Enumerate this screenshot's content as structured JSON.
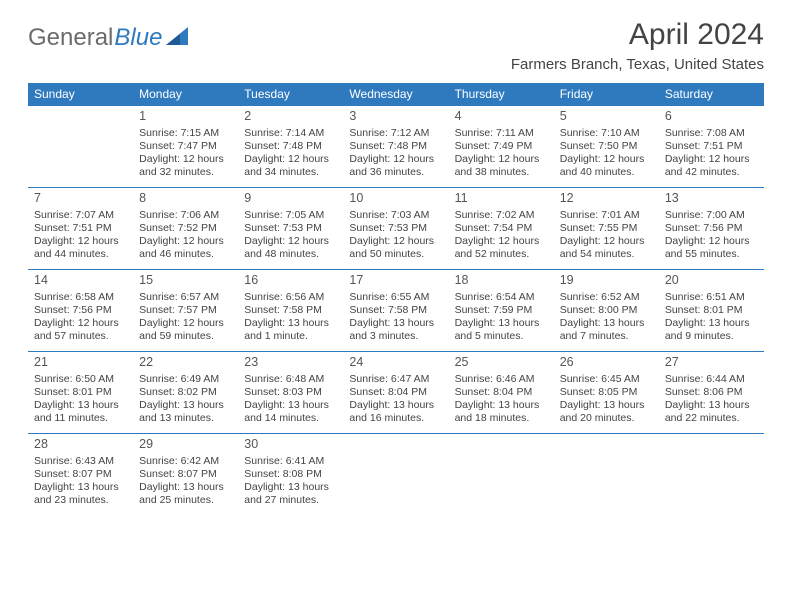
{
  "header": {
    "logo_gray": "General",
    "logo_blue": "Blue",
    "month_title": "April 2024",
    "location": "Farmers Branch, Texas, United States"
  },
  "calendar": {
    "header_bg": "#2f7abf",
    "header_fg": "#ffffff",
    "border_color": "#2f7abf",
    "day_headers": [
      "Sunday",
      "Monday",
      "Tuesday",
      "Wednesday",
      "Thursday",
      "Friday",
      "Saturday"
    ],
    "weeks": [
      [
        null,
        {
          "n": "1",
          "sr": "Sunrise: 7:15 AM",
          "ss": "Sunset: 7:47 PM",
          "d1": "Daylight: 12 hours",
          "d2": "and 32 minutes."
        },
        {
          "n": "2",
          "sr": "Sunrise: 7:14 AM",
          "ss": "Sunset: 7:48 PM",
          "d1": "Daylight: 12 hours",
          "d2": "and 34 minutes."
        },
        {
          "n": "3",
          "sr": "Sunrise: 7:12 AM",
          "ss": "Sunset: 7:48 PM",
          "d1": "Daylight: 12 hours",
          "d2": "and 36 minutes."
        },
        {
          "n": "4",
          "sr": "Sunrise: 7:11 AM",
          "ss": "Sunset: 7:49 PM",
          "d1": "Daylight: 12 hours",
          "d2": "and 38 minutes."
        },
        {
          "n": "5",
          "sr": "Sunrise: 7:10 AM",
          "ss": "Sunset: 7:50 PM",
          "d1": "Daylight: 12 hours",
          "d2": "and 40 minutes."
        },
        {
          "n": "6",
          "sr": "Sunrise: 7:08 AM",
          "ss": "Sunset: 7:51 PM",
          "d1": "Daylight: 12 hours",
          "d2": "and 42 minutes."
        }
      ],
      [
        {
          "n": "7",
          "sr": "Sunrise: 7:07 AM",
          "ss": "Sunset: 7:51 PM",
          "d1": "Daylight: 12 hours",
          "d2": "and 44 minutes."
        },
        {
          "n": "8",
          "sr": "Sunrise: 7:06 AM",
          "ss": "Sunset: 7:52 PM",
          "d1": "Daylight: 12 hours",
          "d2": "and 46 minutes."
        },
        {
          "n": "9",
          "sr": "Sunrise: 7:05 AM",
          "ss": "Sunset: 7:53 PM",
          "d1": "Daylight: 12 hours",
          "d2": "and 48 minutes."
        },
        {
          "n": "10",
          "sr": "Sunrise: 7:03 AM",
          "ss": "Sunset: 7:53 PM",
          "d1": "Daylight: 12 hours",
          "d2": "and 50 minutes."
        },
        {
          "n": "11",
          "sr": "Sunrise: 7:02 AM",
          "ss": "Sunset: 7:54 PM",
          "d1": "Daylight: 12 hours",
          "d2": "and 52 minutes."
        },
        {
          "n": "12",
          "sr": "Sunrise: 7:01 AM",
          "ss": "Sunset: 7:55 PM",
          "d1": "Daylight: 12 hours",
          "d2": "and 54 minutes."
        },
        {
          "n": "13",
          "sr": "Sunrise: 7:00 AM",
          "ss": "Sunset: 7:56 PM",
          "d1": "Daylight: 12 hours",
          "d2": "and 55 minutes."
        }
      ],
      [
        {
          "n": "14",
          "sr": "Sunrise: 6:58 AM",
          "ss": "Sunset: 7:56 PM",
          "d1": "Daylight: 12 hours",
          "d2": "and 57 minutes."
        },
        {
          "n": "15",
          "sr": "Sunrise: 6:57 AM",
          "ss": "Sunset: 7:57 PM",
          "d1": "Daylight: 12 hours",
          "d2": "and 59 minutes."
        },
        {
          "n": "16",
          "sr": "Sunrise: 6:56 AM",
          "ss": "Sunset: 7:58 PM",
          "d1": "Daylight: 13 hours",
          "d2": "and 1 minute."
        },
        {
          "n": "17",
          "sr": "Sunrise: 6:55 AM",
          "ss": "Sunset: 7:58 PM",
          "d1": "Daylight: 13 hours",
          "d2": "and 3 minutes."
        },
        {
          "n": "18",
          "sr": "Sunrise: 6:54 AM",
          "ss": "Sunset: 7:59 PM",
          "d1": "Daylight: 13 hours",
          "d2": "and 5 minutes."
        },
        {
          "n": "19",
          "sr": "Sunrise: 6:52 AM",
          "ss": "Sunset: 8:00 PM",
          "d1": "Daylight: 13 hours",
          "d2": "and 7 minutes."
        },
        {
          "n": "20",
          "sr": "Sunrise: 6:51 AM",
          "ss": "Sunset: 8:01 PM",
          "d1": "Daylight: 13 hours",
          "d2": "and 9 minutes."
        }
      ],
      [
        {
          "n": "21",
          "sr": "Sunrise: 6:50 AM",
          "ss": "Sunset: 8:01 PM",
          "d1": "Daylight: 13 hours",
          "d2": "and 11 minutes."
        },
        {
          "n": "22",
          "sr": "Sunrise: 6:49 AM",
          "ss": "Sunset: 8:02 PM",
          "d1": "Daylight: 13 hours",
          "d2": "and 13 minutes."
        },
        {
          "n": "23",
          "sr": "Sunrise: 6:48 AM",
          "ss": "Sunset: 8:03 PM",
          "d1": "Daylight: 13 hours",
          "d2": "and 14 minutes."
        },
        {
          "n": "24",
          "sr": "Sunrise: 6:47 AM",
          "ss": "Sunset: 8:04 PM",
          "d1": "Daylight: 13 hours",
          "d2": "and 16 minutes."
        },
        {
          "n": "25",
          "sr": "Sunrise: 6:46 AM",
          "ss": "Sunset: 8:04 PM",
          "d1": "Daylight: 13 hours",
          "d2": "and 18 minutes."
        },
        {
          "n": "26",
          "sr": "Sunrise: 6:45 AM",
          "ss": "Sunset: 8:05 PM",
          "d1": "Daylight: 13 hours",
          "d2": "and 20 minutes."
        },
        {
          "n": "27",
          "sr": "Sunrise: 6:44 AM",
          "ss": "Sunset: 8:06 PM",
          "d1": "Daylight: 13 hours",
          "d2": "and 22 minutes."
        }
      ],
      [
        {
          "n": "28",
          "sr": "Sunrise: 6:43 AM",
          "ss": "Sunset: 8:07 PM",
          "d1": "Daylight: 13 hours",
          "d2": "and 23 minutes."
        },
        {
          "n": "29",
          "sr": "Sunrise: 6:42 AM",
          "ss": "Sunset: 8:07 PM",
          "d1": "Daylight: 13 hours",
          "d2": "and 25 minutes."
        },
        {
          "n": "30",
          "sr": "Sunrise: 6:41 AM",
          "ss": "Sunset: 8:08 PM",
          "d1": "Daylight: 13 hours",
          "d2": "and 27 minutes."
        },
        null,
        null,
        null,
        null
      ]
    ]
  }
}
